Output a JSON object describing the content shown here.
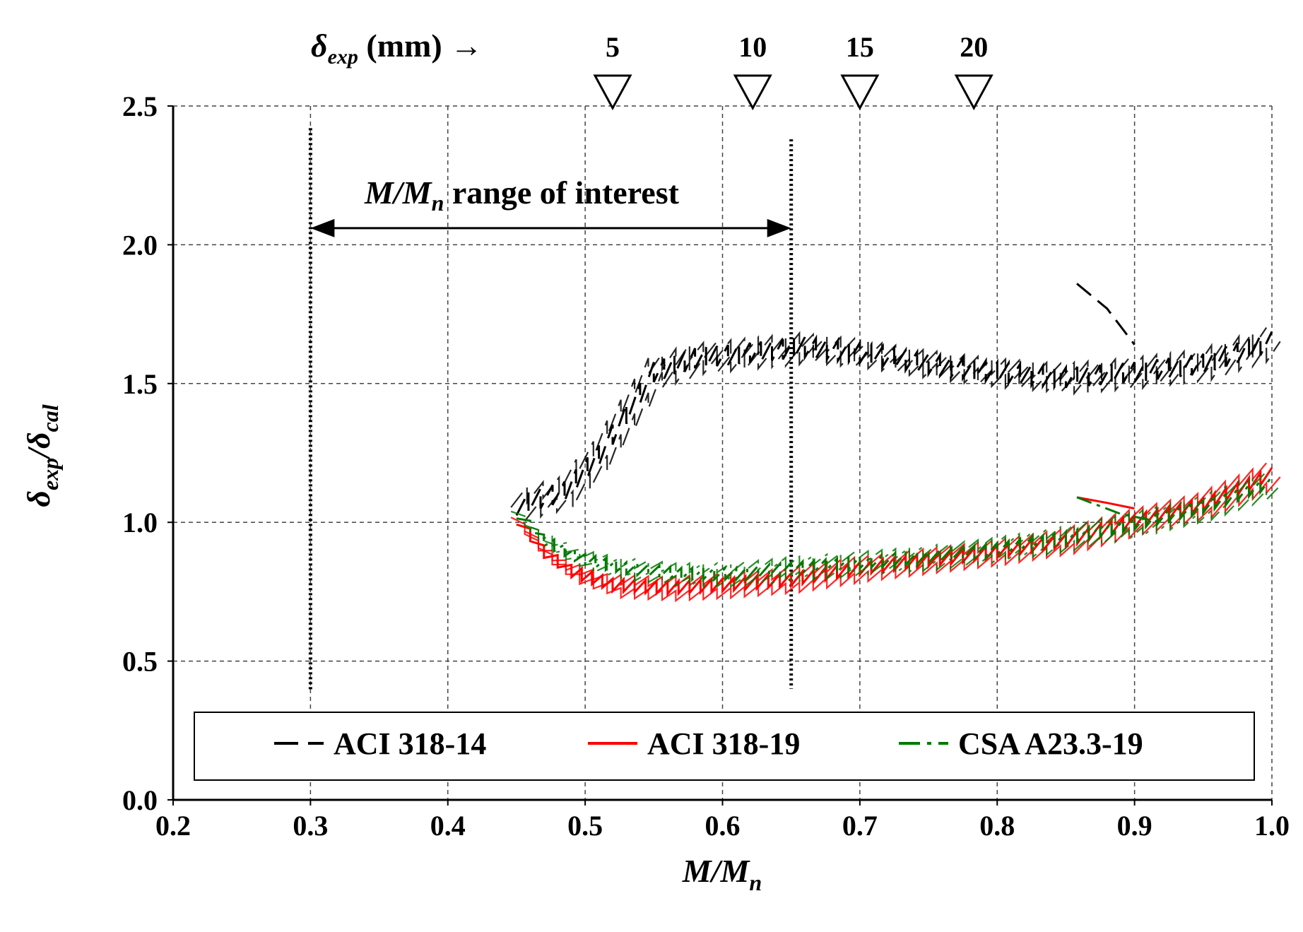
{
  "chart_data": {
    "type": "line",
    "xlabel": "M/M",
    "xlabel_sub": "n",
    "ylabel_main": "δ",
    "ylabel_sub1": "exp",
    "ylabel_sep": "/δ",
    "ylabel_sub2": "cal",
    "xlim": [
      0.2,
      1.0
    ],
    "ylim": [
      0.0,
      2.5
    ],
    "x_ticks": [
      0.2,
      0.3,
      0.4,
      0.5,
      0.6,
      0.7,
      0.8,
      0.9,
      1.0
    ],
    "x_tick_labels": [
      "0.2",
      "0.3",
      "0.4",
      "0.5",
      "0.6",
      "0.7",
      "0.8",
      "0.9",
      "1.0"
    ],
    "y_ticks": [
      0.0,
      0.5,
      1.0,
      1.5,
      2.0,
      2.5
    ],
    "y_tick_labels": [
      "0.0",
      "0.5",
      "1.0",
      "1.5",
      "2.0",
      "2.5"
    ],
    "grid": true,
    "top_axis": {
      "label_main": "δ",
      "label_sub": "exp",
      "label_rest": " (mm)  →",
      "markers": [
        {
          "label": "5",
          "x": 0.52
        },
        {
          "label": "10",
          "x": 0.622
        },
        {
          "label": "15",
          "x": 0.7
        },
        {
          "label": "20",
          "x": 0.783
        }
      ]
    },
    "range_of_interest": {
      "label_main": "M/M",
      "label_sub": "n",
      "label_rest": " range of interest",
      "x_start": 0.3,
      "x_end": 0.65,
      "y": 2.06
    },
    "legend_position": "bottom",
    "series": [
      {
        "name": "ACI 318-14",
        "color": "#000000",
        "style": "dash",
        "segments": [
          [
            [
              0.45,
              1.07
            ],
            [
              0.485,
              1.12
            ],
            [
              0.51,
              1.25
            ],
            [
              0.53,
              1.4
            ],
            [
              0.55,
              1.55
            ],
            [
              0.58,
              1.6
            ],
            [
              0.62,
              1.62
            ],
            [
              0.66,
              1.64
            ],
            [
              0.7,
              1.62
            ],
            [
              0.75,
              1.58
            ],
            [
              0.8,
              1.55
            ],
            [
              0.85,
              1.53
            ],
            [
              0.9,
              1.55
            ],
            [
              0.95,
              1.58
            ],
            [
              1.0,
              1.66
            ]
          ],
          [
            [
              0.858,
              1.86
            ],
            [
              0.88,
              1.77
            ],
            [
              0.9,
              1.64
            ]
          ]
        ]
      },
      {
        "name": "ACI 318-19",
        "color": "#ff0000",
        "style": "solid",
        "segments": [
          [
            [
              0.45,
              1.02
            ],
            [
              0.47,
              0.9
            ],
            [
              0.49,
              0.83
            ],
            [
              0.52,
              0.78
            ],
            [
              0.56,
              0.77
            ],
            [
              0.6,
              0.78
            ],
            [
              0.65,
              0.8
            ],
            [
              0.7,
              0.84
            ],
            [
              0.75,
              0.87
            ],
            [
              0.8,
              0.9
            ],
            [
              0.85,
              0.94
            ],
            [
              0.9,
              1.01
            ],
            [
              0.95,
              1.07
            ],
            [
              1.0,
              1.18
            ]
          ],
          [
            [
              0.858,
              1.09
            ],
            [
              0.88,
              1.07
            ],
            [
              0.9,
              1.05
            ]
          ]
        ]
      },
      {
        "name": "CSA A23.3-19",
        "color": "#007a00",
        "style": "dashdot",
        "segments": [
          [
            [
              0.45,
              1.04
            ],
            [
              0.47,
              0.94
            ],
            [
              0.5,
              0.87
            ],
            [
              0.53,
              0.84
            ],
            [
              0.57,
              0.82
            ],
            [
              0.61,
              0.82
            ],
            [
              0.65,
              0.84
            ],
            [
              0.7,
              0.86
            ],
            [
              0.75,
              0.88
            ],
            [
              0.8,
              0.91
            ],
            [
              0.85,
              0.95
            ],
            [
              0.9,
              1.0
            ],
            [
              0.95,
              1.06
            ],
            [
              1.0,
              1.15
            ]
          ],
          [
            [
              0.858,
              1.09
            ],
            [
              0.89,
              1.03
            ],
            [
              0.92,
              1.0
            ]
          ]
        ]
      }
    ]
  }
}
